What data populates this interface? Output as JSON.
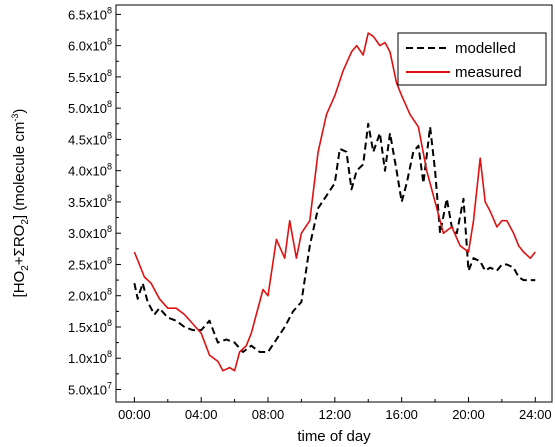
{
  "chart_data": {
    "type": "line",
    "xlabel": "time of day",
    "ylabel": {
      "parts": [
        "[HO",
        "2",
        "+ΣRO",
        "2",
        "] (molecule cm",
        "-3",
        ")"
      ]
    },
    "xlim": [
      -1.1,
      25
    ],
    "ylim": [
      30000000.0,
      665000000.0
    ],
    "x_ticks": [
      {
        "value": 0,
        "label": "00:00"
      },
      {
        "value": 4,
        "label": "04:00"
      },
      {
        "value": 8,
        "label": "08:00"
      },
      {
        "value": 12,
        "label": "12:00"
      },
      {
        "value": 16,
        "label": "16:00"
      },
      {
        "value": 20,
        "label": "20:00"
      },
      {
        "value": 24,
        "label": "24:00"
      }
    ],
    "y_ticks": [
      {
        "value": 50000000.0,
        "mant": "5.0x10",
        "exp": "7"
      },
      {
        "value": 100000000.0,
        "mant": "1.0x10",
        "exp": "8"
      },
      {
        "value": 150000000.0,
        "mant": "1.5x10",
        "exp": "8"
      },
      {
        "value": 200000000.0,
        "mant": "2.0x10",
        "exp": "8"
      },
      {
        "value": 250000000.0,
        "mant": "2.5x10",
        "exp": "8"
      },
      {
        "value": 300000000.0,
        "mant": "3.0x10",
        "exp": "8"
      },
      {
        "value": 350000000.0,
        "mant": "3.5x10",
        "exp": "8"
      },
      {
        "value": 400000000.0,
        "mant": "4.0x10",
        "exp": "8"
      },
      {
        "value": 450000000.0,
        "mant": "4.5x10",
        "exp": "8"
      },
      {
        "value": 500000000.0,
        "mant": "5.0x10",
        "exp": "8"
      },
      {
        "value": 550000000.0,
        "mant": "5.5x10",
        "exp": "8"
      },
      {
        "value": 600000000.0,
        "mant": "6.0x10",
        "exp": "8"
      },
      {
        "value": 650000000.0,
        "mant": "6.5x10",
        "exp": "8"
      }
    ],
    "legend_position": "top-right",
    "series": [
      {
        "name": "modelled",
        "color": "#000000",
        "style": "dashed",
        "x": [
          0,
          0.2,
          0.5,
          0.8,
          1.2,
          1.5,
          2.0,
          2.5,
          3.0,
          3.5,
          4.0,
          4.5,
          5.0,
          5.5,
          6.0,
          6.5,
          7.0,
          7.5,
          8.0,
          8.5,
          9.0,
          9.5,
          10.0,
          10.5,
          11.0,
          11.5,
          12.0,
          12.3,
          12.7,
          13.0,
          13.3,
          13.7,
          14.0,
          14.3,
          14.7,
          15.0,
          15.3,
          15.7,
          16.0,
          16.3,
          16.7,
          17.0,
          17.3,
          17.7,
          18.0,
          18.3,
          18.7,
          19.0,
          19.3,
          19.7,
          20.0,
          20.3,
          20.7,
          21.0,
          21.3,
          21.7,
          22.0,
          22.3,
          22.7,
          23.0,
          23.3,
          23.7,
          24.0
        ],
        "y": [
          220000000.0,
          195000000.0,
          220000000.0,
          190000000.0,
          170000000.0,
          180000000.0,
          165000000.0,
          160000000.0,
          150000000.0,
          145000000.0,
          145000000.0,
          160000000.0,
          125000000.0,
          130000000.0,
          125000000.0,
          110000000.0,
          120000000.0,
          110000000.0,
          110000000.0,
          130000000.0,
          150000000.0,
          175000000.0,
          190000000.0,
          280000000.0,
          340000000.0,
          360000000.0,
          380000000.0,
          435000000.0,
          430000000.0,
          370000000.0,
          400000000.0,
          410000000.0,
          475000000.0,
          430000000.0,
          460000000.0,
          400000000.0,
          460000000.0,
          400000000.0,
          350000000.0,
          380000000.0,
          430000000.0,
          440000000.0,
          380000000.0,
          470000000.0,
          400000000.0,
          300000000.0,
          355000000.0,
          310000000.0,
          300000000.0,
          355000000.0,
          240000000.0,
          260000000.0,
          255000000.0,
          240000000.0,
          245000000.0,
          240000000.0,
          250000000.0,
          250000000.0,
          245000000.0,
          230000000.0,
          225000000.0,
          225000000.0,
          225000000.0
        ]
      },
      {
        "name": "measured",
        "color": "#e01010",
        "style": "solid",
        "x": [
          0,
          0.3,
          0.6,
          1.0,
          1.5,
          2.0,
          2.5,
          3.0,
          3.5,
          4.0,
          4.5,
          5.0,
          5.3,
          5.7,
          6.0,
          6.3,
          6.7,
          7.0,
          7.3,
          7.7,
          8.0,
          8.5,
          9.0,
          9.3,
          9.7,
          10.0,
          10.5,
          11.0,
          11.5,
          12.0,
          12.5,
          13.0,
          13.3,
          13.7,
          14.0,
          14.3,
          14.7,
          15.0,
          15.3,
          15.7,
          16.0,
          16.5,
          17.0,
          17.5,
          18.0,
          18.5,
          19.0,
          19.5,
          20.0,
          20.3,
          20.7,
          21.0,
          21.3,
          21.7,
          22.0,
          22.3,
          22.7,
          23.0,
          23.3,
          23.7,
          24.0
        ],
        "y": [
          270000000.0,
          250000000.0,
          230000000.0,
          220000000.0,
          195000000.0,
          180000000.0,
          180000000.0,
          170000000.0,
          155000000.0,
          140000000.0,
          105000000.0,
          95000000.0,
          80000000.0,
          85000000.0,
          80000000.0,
          110000000.0,
          120000000.0,
          140000000.0,
          170000000.0,
          210000000.0,
          200000000.0,
          290000000.0,
          260000000.0,
          320000000.0,
          260000000.0,
          300000000.0,
          320000000.0,
          430000000.0,
          490000000.0,
          520000000.0,
          560000000.0,
          590000000.0,
          600000000.0,
          585000000.0,
          620000000.0,
          615000000.0,
          600000000.0,
          605000000.0,
          590000000.0,
          540000000.0,
          520000000.0,
          490000000.0,
          470000000.0,
          400000000.0,
          350000000.0,
          300000000.0,
          310000000.0,
          280000000.0,
          270000000.0,
          320000000.0,
          420000000.0,
          350000000.0,
          335000000.0,
          310000000.0,
          320000000.0,
          320000000.0,
          300000000.0,
          280000000.0,
          270000000.0,
          260000000.0,
          270000000.0
        ]
      }
    ]
  }
}
